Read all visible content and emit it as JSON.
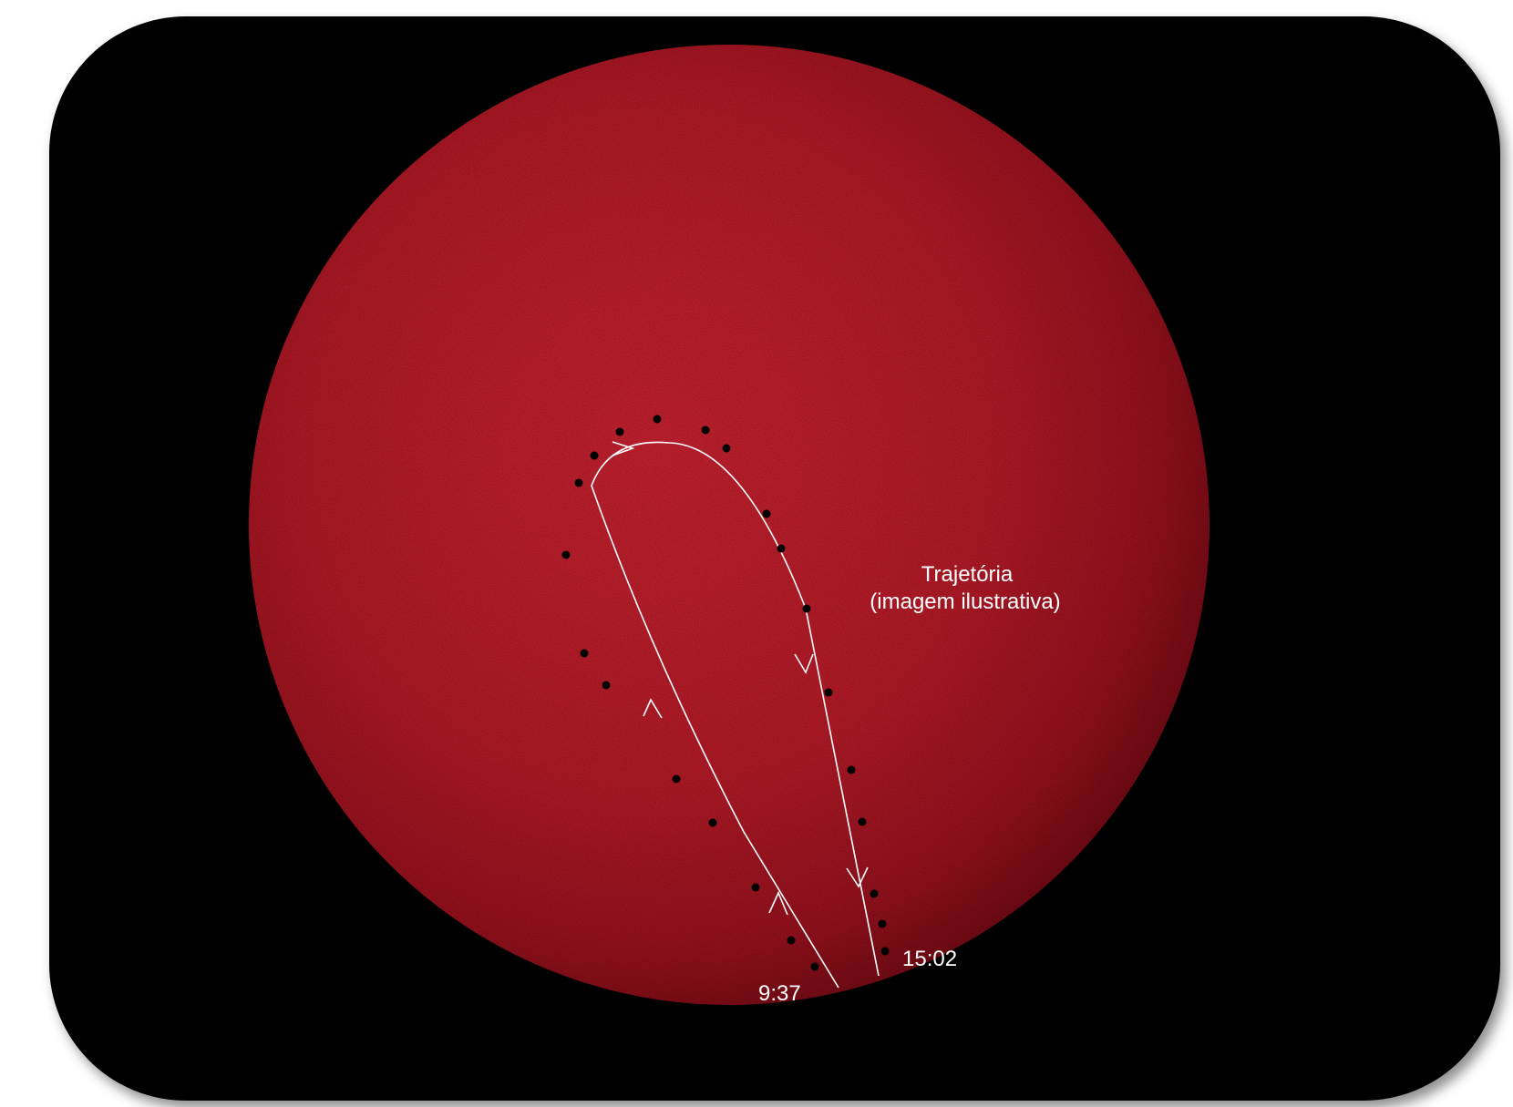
{
  "annotation": {
    "title_line1": "Trajetória",
    "title_line2": "(imagem ilustrativa)"
  },
  "times": {
    "start": "9:37",
    "end": "15:02"
  },
  "colors": {
    "background": "#000000",
    "sun_center": "#d62330",
    "sun_edge": "#7a0a14",
    "trajectory": "#ffffff",
    "spot": "#000000"
  }
}
